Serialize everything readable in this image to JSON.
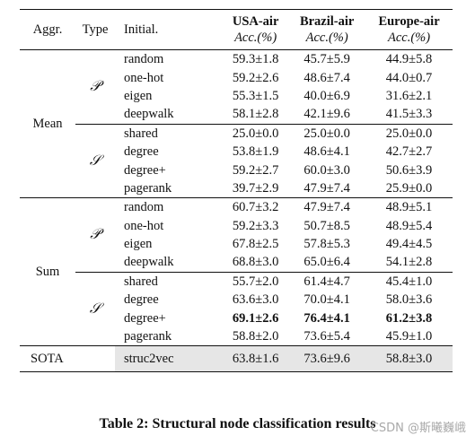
{
  "header": {
    "aggr": "Aggr.",
    "type": "Type",
    "initial": "Initial.",
    "datasets": [
      {
        "name": "USA-air",
        "metric": "Acc.(%)"
      },
      {
        "name": "Brazil-air",
        "metric": "Acc.(%)"
      },
      {
        "name": "Europe-air",
        "metric": "Acc.(%)"
      }
    ]
  },
  "groups": {
    "mean": {
      "label": "Mean",
      "p_symbol": "𝒫",
      "s_symbol": "𝒮",
      "p_rows": [
        {
          "init": "random",
          "usa": "59.3±1.8",
          "brazil": "45.7±5.9",
          "europe": "44.9±5.8"
        },
        {
          "init": "one-hot",
          "usa": "59.2±2.6",
          "brazil": "48.6±7.4",
          "europe": "44.0±0.7"
        },
        {
          "init": "eigen",
          "usa": "55.3±1.5",
          "brazil": "40.0±6.9",
          "europe": "31.6±2.1"
        },
        {
          "init": "deepwalk",
          "usa": "58.1±2.8",
          "brazil": "42.1±9.6",
          "europe": "41.5±3.3"
        }
      ],
      "s_rows": [
        {
          "init": "shared",
          "usa": "25.0±0.0",
          "brazil": "25.0±0.0",
          "europe": "25.0±0.0"
        },
        {
          "init": "degree",
          "usa": "53.8±1.9",
          "brazil": "48.6±4.1",
          "europe": "42.7±2.7"
        },
        {
          "init": "degree+",
          "usa": "59.2±2.7",
          "brazil": "60.0±3.0",
          "europe": "50.6±3.9"
        },
        {
          "init": "pagerank",
          "usa": "39.7±2.9",
          "brazil": "47.9±7.4",
          "europe": "25.9±0.0"
        }
      ]
    },
    "sum": {
      "label": "Sum",
      "p_symbol": "𝒫",
      "s_symbol": "𝒮",
      "p_rows": [
        {
          "init": "random",
          "usa": "60.7±3.2",
          "brazil": "47.9±7.4",
          "europe": "48.9±5.1"
        },
        {
          "init": "one-hot",
          "usa": "59.2±3.3",
          "brazil": "50.7±8.5",
          "europe": "48.9±5.4"
        },
        {
          "init": "eigen",
          "usa": "67.8±2.5",
          "brazil": "57.8±5.3",
          "europe": "49.4±4.5"
        },
        {
          "init": "deepwalk",
          "usa": "68.8±3.0",
          "brazil": "65.0±6.4",
          "europe": "54.1±2.8"
        }
      ],
      "s_rows": [
        {
          "init": "shared",
          "usa": "55.7±2.0",
          "brazil": "61.4±4.7",
          "europe": "45.4±1.0"
        },
        {
          "init": "degree",
          "usa": "63.6±3.0",
          "brazil": "70.0±4.1",
          "europe": "58.0±3.6"
        },
        {
          "init": "degree+",
          "usa": "69.1±2.6",
          "brazil": "76.4±4.1",
          "europe": "61.2±3.8"
        },
        {
          "init": "pagerank",
          "usa": "58.8±2.0",
          "brazil": "73.6±5.4",
          "europe": "45.9±1.0"
        }
      ]
    }
  },
  "sota": {
    "label": "SOTA",
    "init": "struc2vec",
    "usa": "63.8±1.6",
    "brazil": "73.6±9.6",
    "europe": "58.8±3.0"
  },
  "caption": "Table 2: Structural node classification results",
  "watermark": "CSDN @斯曦巍峨"
}
